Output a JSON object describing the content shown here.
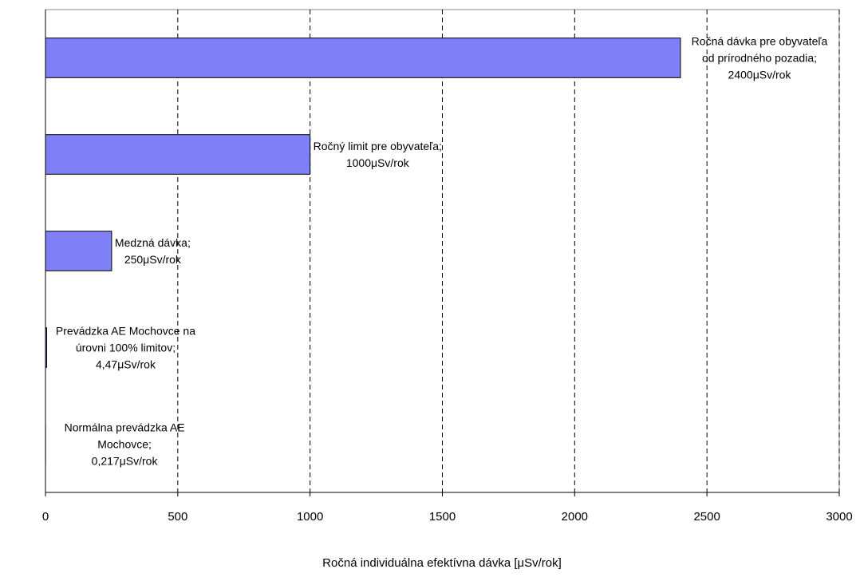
{
  "chart_data": {
    "type": "barh",
    "xlabel": "Ročná individuálna efektívna dávka [μSv/rok]",
    "categories": [
      "Ročná dávka pre obyvateľa od prírodného pozadia;",
      "Ročný limit pre obyvateľa;",
      "Medzná dávka;",
      "Prevádzka AE Mochovce na úrovni 100% limitov;",
      "Normálna prevádzka AE Mochovce;"
    ],
    "values": [
      2400,
      1000,
      250,
      4.47,
      0.217
    ],
    "value_labels": [
      "2400μSv/rok",
      "1000μSv/rok",
      "250μSv/rok",
      "4,47μSv/rok",
      "0,217μSv/rok"
    ],
    "color": "#7f7ff7",
    "xlim": [
      0,
      3000
    ],
    "xticks": [
      0,
      500,
      1000,
      1500,
      2000,
      2500,
      3000
    ],
    "grid": true
  }
}
